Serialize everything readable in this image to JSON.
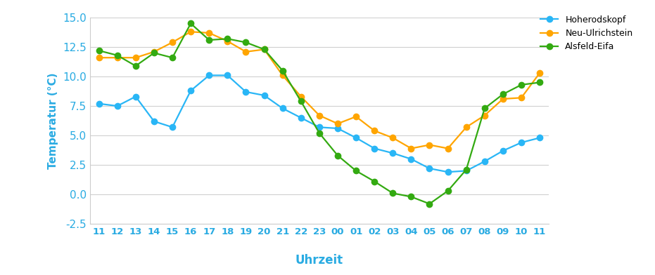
{
  "chart_data": {
    "type": "line",
    "x_label": "Uhrzeit",
    "y_label": "Temperatur (°C)",
    "categories": [
      "11",
      "12",
      "13",
      "14",
      "15",
      "16",
      "17",
      "18",
      "19",
      "20",
      "21",
      "22",
      "23",
      "00",
      "01",
      "02",
      "03",
      "04",
      "05",
      "06",
      "07",
      "08",
      "09",
      "10",
      "11"
    ],
    "series": [
      {
        "name": "Hoherodskopf",
        "color": "#29b6f6",
        "marker": "o",
        "values": [
          7.7,
          7.5,
          8.3,
          6.2,
          5.7,
          8.8,
          10.1,
          10.1,
          8.7,
          8.4,
          7.3,
          6.5,
          5.7,
          5.6,
          4.8,
          3.9,
          3.5,
          3.0,
          2.2,
          1.9,
          2.0,
          2.8,
          3.7,
          4.4,
          4.8
        ]
      },
      {
        "name": "Neu-Ulrichstein",
        "color": "#ffa500",
        "marker": "o",
        "values": [
          11.6,
          11.6,
          11.6,
          12.1,
          12.9,
          13.8,
          13.7,
          13.0,
          12.1,
          12.3,
          10.1,
          8.3,
          6.7,
          6.0,
          6.6,
          5.4,
          4.8,
          3.9,
          4.2,
          3.9,
          5.7,
          6.7,
          8.1,
          8.2,
          10.3
        ]
      },
      {
        "name": "Alsfeld-Eifa",
        "color": "#33aa11",
        "marker": "o",
        "values": [
          12.2,
          11.8,
          10.9,
          12.0,
          11.6,
          14.5,
          13.1,
          13.2,
          12.9,
          12.3,
          10.5,
          7.9,
          5.2,
          3.3,
          2.0,
          1.1,
          0.1,
          -0.2,
          -0.8,
          0.3,
          2.1,
          7.3,
          8.5,
          9.3,
          9.5
        ]
      }
    ],
    "ylim": [
      -2.5,
      15.0
    ],
    "yticks": [
      {
        "value": -2.5,
        "label": "-2.5"
      },
      {
        "value": 0,
        "label": "0.0"
      },
      {
        "value": 2.5,
        "label": "2.5"
      },
      {
        "value": 5,
        "label": "5.0"
      },
      {
        "value": 7.5,
        "label": "7.5"
      },
      {
        "value": 10,
        "label": "10.0"
      },
      {
        "value": 12.5,
        "label": "12.5"
      },
      {
        "value": 15,
        "label": "15.0"
      }
    ],
    "grid": true,
    "legend": "upper right"
  }
}
